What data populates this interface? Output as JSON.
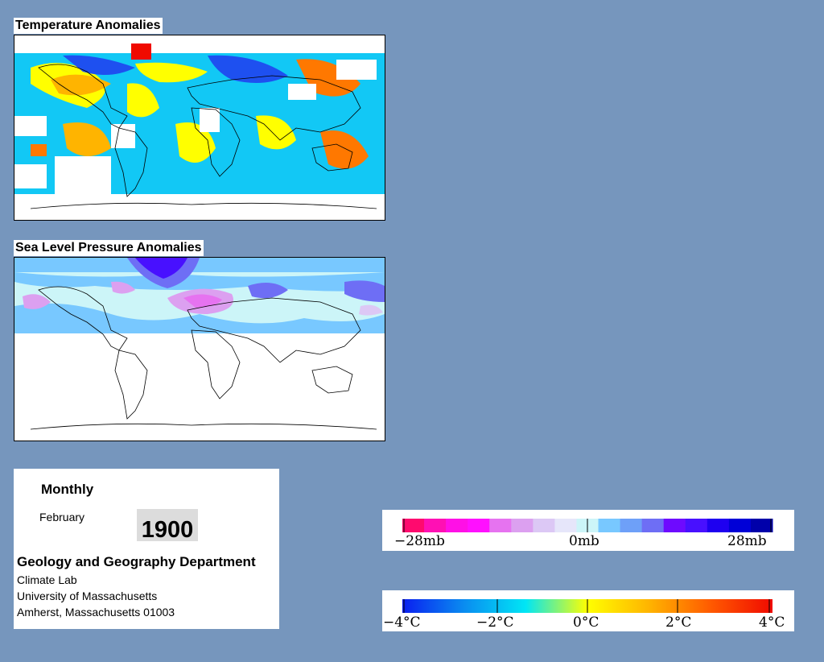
{
  "panels": {
    "temperature": {
      "title": "Temperature Anomalies"
    },
    "pressure": {
      "title": "Sea Level Pressure Anomalies"
    }
  },
  "info": {
    "mode": "Monthly",
    "month": "February",
    "year": "1900",
    "department": "Geology and Geography Department",
    "lab": "Climate Lab",
    "university": "University of Massachusetts",
    "address": "Amherst, Massachusetts 01003"
  },
  "legends": {
    "pressure": {
      "labels": [
        "−28mb",
        "0mb",
        "28mb"
      ],
      "colors": [
        "#ff0a6e",
        "#ff10b4",
        "#ff10e6",
        "#ff10ff",
        "#e673f0",
        "#dca0f0",
        "#dcc8f5",
        "#e6e6fa",
        "#ccf5f8",
        "#78c8ff",
        "#6ea0f8",
        "#6e6ef5",
        "#6e0aff",
        "#4810ff",
        "#1e00f0",
        "#0000d7",
        "#0000aa"
      ]
    },
    "temperature": {
      "labels": [
        "−4°C",
        "−2°C",
        "0°C",
        "2°C",
        "4°C"
      ],
      "gradient": [
        "#0a1ef0",
        "#0a8cf0",
        "#00e6f5",
        "#ffff00",
        "#ffb400",
        "#ff5a00",
        "#f00a00"
      ]
    }
  },
  "colors": {
    "background": "#7696bd"
  }
}
